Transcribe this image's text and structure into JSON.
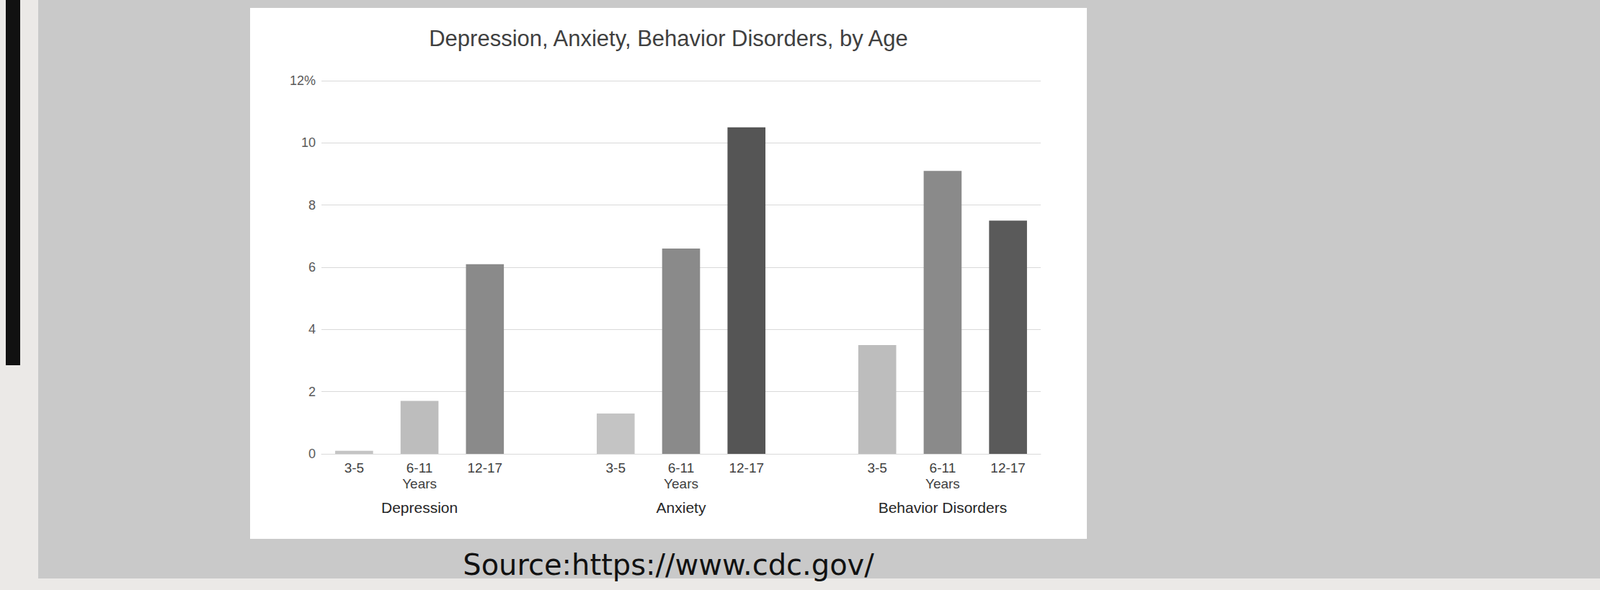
{
  "chart_data": {
    "type": "bar",
    "title": "Depression, Anxiety, Behavior Disorders, by Age",
    "categories": [
      "3-5",
      "6-11\nYears",
      "12-17",
      null,
      "3-5",
      "6-11\nYears",
      "12-17",
      null,
      "3-5",
      "6-11\nYears",
      "12-17"
    ],
    "groups": [
      "Depression",
      "Anxiety",
      "Behavior Disorders"
    ],
    "values": [
      0.1,
      1.7,
      6.1,
      null,
      1.3,
      6.6,
      10.5,
      null,
      3.5,
      9.1,
      7.5
    ],
    "colors": [
      "#c4c4c4",
      "#bdbdbd",
      "#8a8a8a",
      null,
      "#c4c4c4",
      "#8a8a8a",
      "#555555",
      null,
      "#bdbdbd",
      "#8a8a8a",
      "#5a5a5a"
    ],
    "ylim": [
      0,
      12
    ],
    "yticks": [
      0,
      2,
      4,
      6,
      8,
      10,
      {
        "value": 12,
        "label": "12%"
      }
    ],
    "grid": true,
    "source": "Source:https://www.cdc.gov/"
  }
}
